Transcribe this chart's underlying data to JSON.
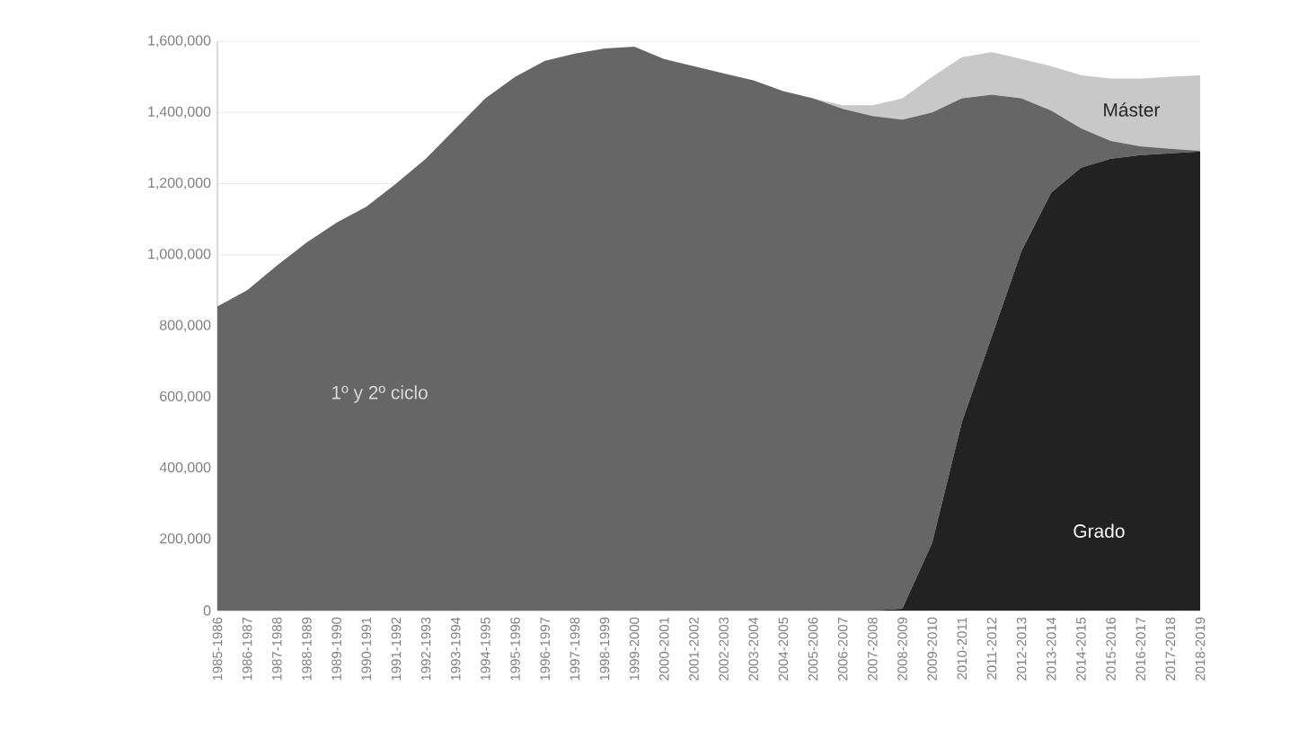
{
  "chart_data": {
    "type": "area",
    "stacked": true,
    "grid": "y",
    "legend": false,
    "categories": [
      "1985-1986",
      "1986-1987",
      "1987-1988",
      "1988-1989",
      "1989-1990",
      "1990-1991",
      "1991-1992",
      "1992-1993",
      "1993-1994",
      "1994-1995",
      "1995-1996",
      "1996-1997",
      "1997-1998",
      "1998-1999",
      "1999-2000",
      "2000-2001",
      "2001-2002",
      "2002-2003",
      "2003-2004",
      "2004-2005",
      "2005-2006",
      "2006-2007",
      "2007-2008",
      "2008-2009",
      "2009-2010",
      "2010-2011",
      "2011-2012",
      "2012-2013",
      "2013-2014",
      "2014-2015",
      "2015-2016",
      "2016-2017",
      "2017-2018",
      "2018-2019"
    ],
    "ylim": [
      0,
      1600000
    ],
    "yticks": [
      0,
      {
        "value": 200000,
        "label": "200,000"
      },
      {
        "value": 400000,
        "label": "400,000"
      },
      {
        "value": 600000,
        "label": "600,000"
      },
      {
        "value": 800000,
        "label": "800,000"
      },
      {
        "value": 1000000,
        "label": "1,000,000"
      },
      {
        "value": 1200000,
        "label": "1,200,000"
      },
      {
        "value": 1400000,
        "label": "1,400,000"
      },
      {
        "value": 1600000,
        "label": "1,600,000"
      }
    ],
    "series": [
      {
        "name": "Grado",
        "color": "#222222",
        "values": [
          0,
          0,
          0,
          0,
          0,
          0,
          0,
          0,
          0,
          0,
          0,
          0,
          0,
          0,
          0,
          0,
          0,
          0,
          0,
          0,
          0,
          0,
          0,
          5000,
          190000,
          530000,
          770000,
          1010000,
          1175000,
          1245000,
          1270000,
          1280000,
          1285000,
          1290000
        ]
      },
      {
        "name": "1º y 2º ciclo",
        "color": "#666666",
        "values": [
          855000,
          900000,
          970000,
          1035000,
          1090000,
          1135000,
          1200000,
          1270000,
          1355000,
          1440000,
          1500000,
          1545000,
          1565000,
          1580000,
          1585000,
          1550000,
          1530000,
          1510000,
          1490000,
          1460000,
          1440000,
          1410000,
          1390000,
          1375000,
          1210000,
          910000,
          680000,
          430000,
          230000,
          110000,
          50000,
          25000,
          13000,
          2000
        ]
      },
      {
        "name": "Máster",
        "color": "#c8c8c8",
        "values": [
          0,
          0,
          0,
          0,
          0,
          0,
          0,
          0,
          0,
          0,
          0,
          0,
          0,
          0,
          0,
          0,
          0,
          0,
          0,
          0,
          0,
          10000,
          30000,
          60000,
          100000,
          115000,
          120000,
          110000,
          125000,
          150000,
          175000,
          190000,
          202000,
          213000
        ]
      }
    ]
  }
}
